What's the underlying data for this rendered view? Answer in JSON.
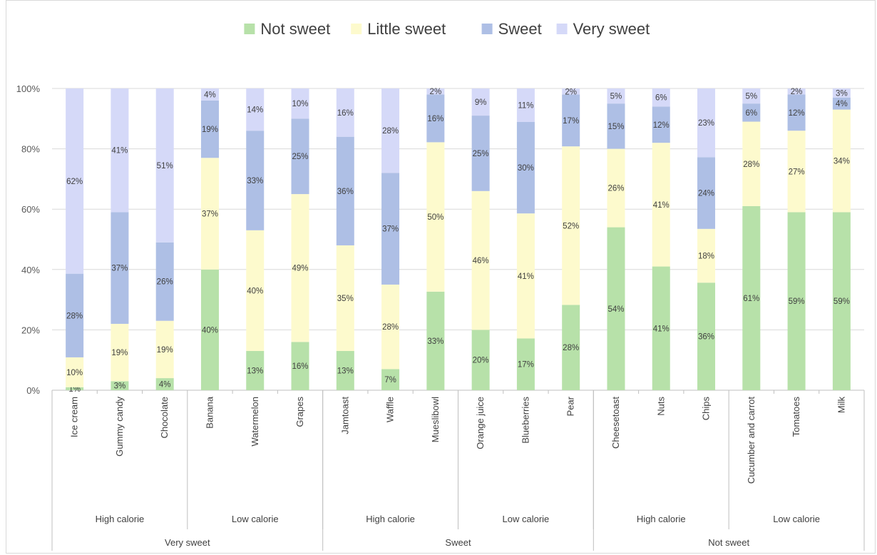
{
  "chart_data": {
    "type": "bar",
    "stacked": true,
    "percent_stacked": true,
    "legend_position": "top",
    "grid": true,
    "ylim": [
      0,
      100
    ],
    "y_ticks": [
      "0%",
      "20%",
      "40%",
      "60%",
      "80%",
      "100%"
    ],
    "title": "",
    "xlabel": "",
    "ylabel": "",
    "categories": [
      "Ice cream",
      "Gummy candy",
      "Chocolate",
      "Banana",
      "Watermelon",
      "Grapes",
      "Jamtoast",
      "Waffle",
      "Mueslibowl",
      "Orange juice",
      "Blueberries",
      "Pear",
      "Cheesetoast",
      "Nuts",
      "Chips",
      "Cucumber and carrot",
      "Tomatoes",
      "Milk"
    ],
    "subgroups": [
      {
        "label": "High calorie",
        "span": 3
      },
      {
        "label": "Low calorie",
        "span": 3
      },
      {
        "label": "High calorie",
        "span": 3
      },
      {
        "label": "Low calorie",
        "span": 3
      },
      {
        "label": "High calorie",
        "span": 3
      },
      {
        "label": "Low calorie",
        "span": 3
      }
    ],
    "groups": [
      {
        "label": "Very sweet",
        "span": 6
      },
      {
        "label": "Sweet",
        "span": 6
      },
      {
        "label": "Not sweet",
        "span": 6
      }
    ],
    "series": [
      {
        "name": "Not sweet",
        "color": "#b7e1a9",
        "values": [
          1,
          3,
          4,
          40,
          13,
          16,
          13,
          7,
          33,
          20,
          17,
          28,
          54,
          41,
          36,
          61,
          59,
          59
        ],
        "labels": [
          "1%",
          "3%",
          "4%",
          "40%",
          "13%",
          "16%",
          "13%",
          "7%",
          "33%",
          "20%",
          "17%",
          "28%",
          "54%",
          "41%",
          "36%",
          "61%",
          "59%",
          "59%"
        ]
      },
      {
        "name": "Little sweet",
        "color": "#fdfacd",
        "values": [
          10,
          19,
          19,
          37,
          40,
          49,
          35,
          28,
          50,
          46,
          41,
          52,
          26,
          41,
          18,
          28,
          27,
          34
        ],
        "labels": [
          "10%",
          "19%",
          "19%",
          "37%",
          "40%",
          "49%",
          "35%",
          "28%",
          "50%",
          "46%",
          "41%",
          "52%",
          "26%",
          "41%",
          "18%",
          "28%",
          "27%",
          "34%"
        ]
      },
      {
        "name": "Sweet",
        "color": "#aebfe5",
        "values": [
          28,
          37,
          26,
          19,
          33,
          25,
          36,
          37,
          16,
          25,
          30,
          17,
          15,
          12,
          24,
          6,
          12,
          4
        ],
        "labels": [
          "28%",
          "37%",
          "26%",
          "19%",
          "33%",
          "25%",
          "36%",
          "37%",
          "16%",
          "25%",
          "30%",
          "17%",
          "15%",
          "12%",
          "24%",
          "6%",
          "12%",
          "4%"
        ]
      },
      {
        "name": "Very sweet",
        "color": "#d5d9f8",
        "values": [
          62,
          41,
          51,
          4,
          14,
          10,
          16,
          28,
          2,
          9,
          11,
          2,
          5,
          6,
          23,
          5,
          2,
          3
        ],
        "labels": [
          "62%",
          "41%",
          "51%",
          "4%",
          "14%",
          "10%",
          "16%",
          "28%",
          "2%",
          "9%",
          "11%",
          "2%",
          "5%",
          "6%",
          "23%",
          "5%",
          "2%",
          "3%"
        ]
      }
    ]
  }
}
